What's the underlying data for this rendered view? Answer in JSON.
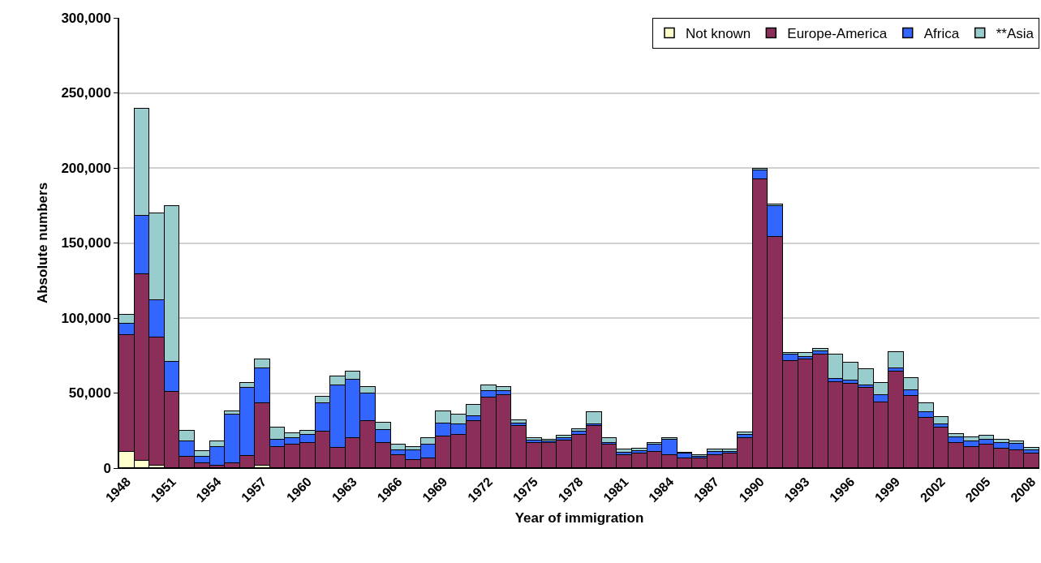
{
  "chart_data": {
    "type": "bar",
    "stacked": true,
    "xlabel": "Year of immigration",
    "ylabel": "Absolute numbers",
    "categories": [
      "1948",
      null,
      null,
      "1951",
      null,
      null,
      "1954",
      null,
      null,
      "1957",
      null,
      null,
      "1960",
      null,
      null,
      "1963",
      null,
      null,
      "1966",
      null,
      null,
      "1969",
      null,
      null,
      "1972",
      null,
      null,
      "1975",
      null,
      null,
      "1978",
      null,
      null,
      "1981",
      null,
      null,
      "1984",
      null,
      null,
      "1987",
      null,
      null,
      "1990",
      null,
      null,
      "1993",
      null,
      null,
      "1996",
      null,
      null,
      "1999",
      null,
      null,
      "2002",
      null,
      null,
      "2005",
      null,
      null,
      "2008"
    ],
    "series": [
      {
        "name": "Not known",
        "color": "#ffffcc",
        "values": [
          11000,
          5000,
          1500,
          0,
          0,
          0,
          0,
          0,
          0,
          1500,
          0,
          0,
          0,
          0,
          0,
          0,
          0,
          0,
          0,
          0,
          0,
          0,
          0,
          0,
          0,
          0,
          0,
          0,
          0,
          0,
          0,
          0,
          0,
          0,
          0,
          0,
          0,
          0,
          0,
          0,
          0,
          0,
          0,
          0,
          0,
          0,
          0,
          0,
          0,
          0,
          0,
          0,
          0,
          0,
          0,
          0,
          0,
          0,
          0,
          0,
          0
        ]
      },
      {
        "name": "Europe-America",
        "color": "#8b2e5a",
        "values": [
          77500,
          124000,
          85500,
          51000,
          7700,
          3200,
          1400,
          3200,
          7900,
          41500,
          14200,
          15500,
          16600,
          24500,
          13300,
          20000,
          31300,
          16800,
          8600,
          5200,
          6500,
          20900,
          22300,
          31300,
          47000,
          48500,
          28100,
          16900,
          16800,
          18200,
          22200,
          28100,
          15500,
          8600,
          9700,
          11000,
          8800,
          6500,
          6500,
          8800,
          9500,
          20000,
          192600,
          154200,
          71300,
          72300,
          75800,
          57500,
          56400,
          53300,
          43800,
          64500,
          48300,
          33500,
          26900,
          16800,
          14200,
          15500,
          13100,
          11900,
          9500
        ]
      },
      {
        "name": "Africa",
        "color": "#3366ff",
        "values": [
          7500,
          39000,
          25000,
          20000,
          10100,
          4500,
          12600,
          32600,
          45400,
          23500,
          4700,
          4500,
          5600,
          18500,
          41800,
          38700,
          18200,
          8600,
          3300,
          6700,
          9000,
          9000,
          6700,
          3100,
          4500,
          3000,
          1800,
          1600,
          1200,
          1800,
          2000,
          1200,
          1400,
          1800,
          1800,
          4500,
          9900,
          3000,
          1000,
          1800,
          1400,
          2300,
          5800,
          20400,
          4500,
          1700,
          1900,
          2100,
          1800,
          1800,
          4700,
          1800,
          3800,
          3600,
          2100,
          3600,
          3600,
          3600,
          3700,
          4200,
          2400
        ]
      },
      {
        "name": "**Asia",
        "color": "#99cccc",
        "values": [
          6000,
          71500,
          58000,
          103500,
          7100,
          3700,
          3800,
          1900,
          3300,
          6100,
          8300,
          3200,
          2500,
          4700,
          6000,
          5600,
          4400,
          4900,
          3600,
          2300,
          4500,
          8100,
          6800,
          7600,
          3600,
          2700,
          1800,
          1500,
          1100,
          1500,
          1700,
          8200,
          3100,
          1800,
          1600,
          1400,
          1300,
          600,
          1300,
          1800,
          1300,
          1300,
          1200,
          1200,
          900,
          2700,
          1800,
          16200,
          12200,
          10700,
          8100,
          11000,
          8100,
          6000,
          5100,
          2300,
          2600,
          2400,
          2300,
          1700,
          1800
        ]
      }
    ],
    "ylim": [
      0,
      300000
    ],
    "yticks": [
      0,
      {
        "value": 50000,
        "label": "50,000"
      },
      {
        "value": 100000,
        "label": "100,000"
      },
      {
        "value": 150000,
        "label": "150,000"
      },
      {
        "value": 200000,
        "label": "200,000"
      },
      {
        "value": 250000,
        "label": "250,000"
      },
      {
        "value": 300000,
        "label": "300,000"
      }
    ],
    "grid": "y",
    "legend": "top right"
  }
}
